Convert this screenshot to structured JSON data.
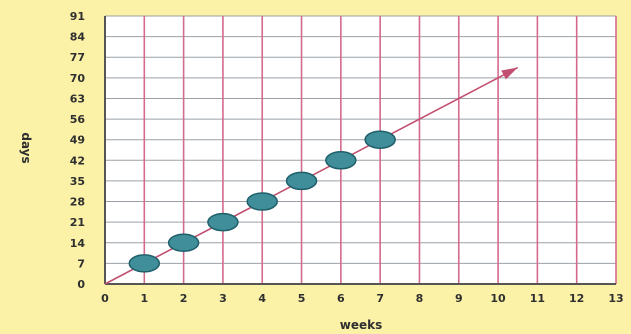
{
  "chart_data": {
    "type": "scatter",
    "xlabel": "weeks",
    "ylabel": "days",
    "x_ticks": [
      0,
      1,
      2,
      3,
      4,
      5,
      6,
      7,
      8,
      9,
      10,
      11,
      12,
      13
    ],
    "y_ticks": [
      0,
      7,
      14,
      21,
      28,
      35,
      42,
      49,
      56,
      63,
      70,
      77,
      84,
      91
    ],
    "xlim": [
      0,
      13
    ],
    "ylim": [
      0,
      91
    ],
    "grid": true,
    "points": [
      {
        "x": 1,
        "y": 7
      },
      {
        "x": 2,
        "y": 14
      },
      {
        "x": 3,
        "y": 21
      },
      {
        "x": 4,
        "y": 28
      },
      {
        "x": 5,
        "y": 35
      },
      {
        "x": 6,
        "y": 42
      },
      {
        "x": 7,
        "y": 49
      }
    ],
    "trend_line": {
      "x": [
        0,
        10.5
      ],
      "y": [
        0,
        73.5
      ],
      "arrow": true
    },
    "colors": {
      "background": "#fbf2a8",
      "plot_background": "#ffffff",
      "vertical_grid": "#d46a8c",
      "horizontal_grid": "#9aa0a6",
      "axis": "#555555",
      "marker_fill": "#3f8e9a",
      "marker_edge": "#1f5f6a",
      "trend_line": "#c25070"
    }
  }
}
